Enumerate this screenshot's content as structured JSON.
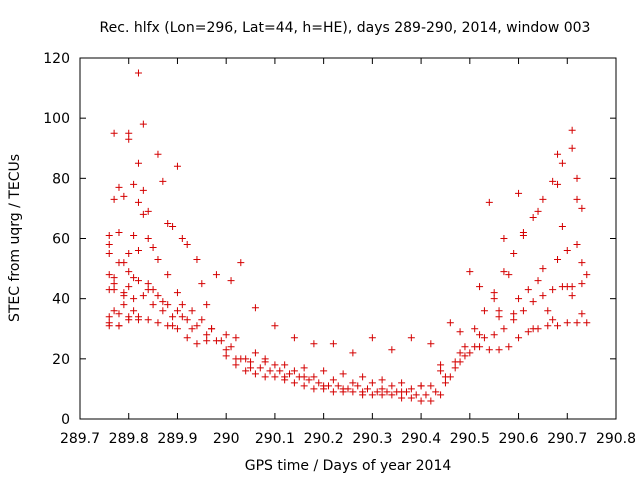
{
  "chart_data": {
    "type": "scatter",
    "title": "Rec. hlfx (Lon=296, Lat=44, h=HE), days 289-290, 2014, window 003",
    "xlabel": "GPS time / Days of year 2014",
    "ylabel": "STEC from uqrg / TECUs",
    "xlim": [
      289.7,
      290.8
    ],
    "ylim": [
      0,
      120
    ],
    "xticks": [
      "289.7",
      "289.8",
      "289.9",
      "290",
      "290.1",
      "290.2",
      "290.3",
      "290.4",
      "290.5",
      "290.6",
      "290.7",
      "290.8"
    ],
    "yticks": [
      "0",
      "20",
      "40",
      "60",
      "80",
      "100",
      "120"
    ],
    "marker": "plus",
    "marker_color": "#d40000",
    "grid": false,
    "legend": "none",
    "series": [
      {
        "x": [
          289.76,
          289.76,
          289.76,
          289.76,
          289.76,
          289.76,
          289.77,
          289.77,
          289.77,
          289.77,
          289.77,
          289.78,
          289.78,
          289.78,
          289.78,
          289.79,
          289.79,
          289.79,
          289.79,
          289.8,
          289.8,
          289.8,
          289.8,
          289.8,
          289.81,
          289.81,
          289.81,
          289.81,
          289.82,
          289.82,
          289.82,
          289.82,
          289.82,
          289.83,
          289.83,
          289.83,
          289.84,
          289.84,
          289.84,
          289.85,
          289.85,
          289.86,
          289.86,
          289.87,
          289.87,
          289.88,
          289.88,
          289.89,
          289.89,
          289.9,
          289.9,
          289.91,
          289.91,
          289.92,
          289.93,
          289.94,
          289.95,
          289.96,
          289.97,
          289.98,
          290.0,
          290.01,
          290.02,
          290.03,
          290.05,
          290.06,
          290.08,
          290.1,
          290.12,
          290.14,
          290.16,
          290.18,
          290.2,
          290.22,
          290.24,
          290.26,
          290.28,
          290.3,
          290.32,
          290.34,
          290.36,
          290.38,
          290.4,
          290.42,
          290.44,
          290.46,
          290.48,
          290.5,
          290.52,
          290.54,
          290.55,
          290.56,
          290.57,
          290.58,
          290.59,
          290.6,
          290.61,
          290.62,
          290.63,
          290.64,
          290.65,
          290.66,
          290.67,
          290.68,
          290.68,
          290.69,
          290.7,
          290.7,
          290.71,
          290.71,
          290.72,
          290.72,
          290.73,
          290.73,
          290.73,
          290.74
        ],
        "y": [
          34,
          58,
          48,
          43,
          61,
          32,
          73,
          95,
          47,
          43,
          36,
          62,
          77,
          35,
          31,
          74,
          52,
          41,
          38,
          95,
          55,
          44,
          34,
          93,
          78,
          61,
          47,
          36,
          115,
          85,
          72,
          56,
          33,
          98,
          76,
          68,
          69,
          60,
          45,
          57,
          43,
          88,
          53,
          79,
          39,
          65,
          48,
          64,
          31,
          84,
          42,
          60,
          34,
          58,
          30,
          53,
          45,
          38,
          30,
          48,
          28,
          46,
          20,
          52,
          19,
          37,
          20,
          31,
          14,
          27,
          14,
          25,
          11,
          25,
          10,
          22,
          9,
          27,
          10,
          23,
          9,
          27,
          11,
          25,
          18,
          32,
          29,
          49,
          44,
          72,
          40,
          36,
          60,
          48,
          35,
          75,
          62,
          43,
          30,
          69,
          50,
          36,
          33,
          88,
          78,
          64,
          56,
          44,
          96,
          41,
          80,
          73,
          35,
          70,
          52,
          48
        ]
      },
      {
        "x": [
          289.76,
          289.78,
          289.8,
          289.82,
          289.84,
          289.86,
          289.88,
          289.9,
          289.92,
          289.94,
          289.96,
          289.98,
          290.0,
          290.02,
          290.04,
          290.06,
          290.08,
          290.1,
          290.12,
          290.14,
          290.16,
          290.18,
          290.2,
          290.22,
          290.24,
          290.26,
          290.28,
          290.3,
          290.32,
          290.34,
          290.36,
          290.38,
          290.4,
          290.42,
          290.44,
          290.46,
          290.48,
          290.5,
          290.52,
          290.54,
          290.56,
          290.58,
          290.6,
          290.62,
          290.64,
          290.66,
          290.68,
          290.7,
          290.72,
          290.74
        ],
        "y": [
          31,
          31,
          33,
          34,
          33,
          32,
          31,
          30,
          27,
          25,
          26,
          26,
          21,
          18,
          16,
          15,
          14,
          14,
          13,
          12,
          11,
          10,
          10,
          9,
          9,
          9,
          8,
          8,
          8,
          8,
          7,
          7,
          6,
          6,
          8,
          14,
          19,
          22,
          24,
          23,
          23,
          24,
          27,
          29,
          30,
          31,
          31,
          32,
          32,
          32
        ]
      },
      {
        "x": [
          289.77,
          289.79,
          289.81,
          289.83,
          289.85,
          289.87,
          289.89,
          289.91,
          289.93,
          289.95,
          289.97,
          289.99,
          290.01,
          290.03,
          290.05,
          290.07,
          290.09,
          290.11,
          290.13,
          290.15,
          290.17,
          290.19,
          290.21,
          290.23,
          290.25,
          290.27,
          290.29,
          290.31,
          290.33,
          290.35,
          290.37,
          290.39,
          290.41,
          290.43,
          290.45,
          290.47,
          290.49,
          290.51,
          290.53,
          290.55,
          290.57,
          290.59,
          290.61,
          290.63,
          290.65,
          290.67,
          290.69,
          290.71,
          290.73
        ],
        "y": [
          45,
          42,
          40,
          41,
          38,
          36,
          34,
          38,
          36,
          33,
          30,
          26,
          24,
          20,
          17,
          17,
          16,
          16,
          15,
          14,
          13,
          12,
          11,
          11,
          10,
          11,
          10,
          9,
          9,
          9,
          9,
          8,
          8,
          9,
          12,
          17,
          21,
          24,
          27,
          28,
          30,
          33,
          36,
          39,
          41,
          43,
          44,
          44,
          45
        ]
      },
      {
        "x": [
          289.76,
          289.78,
          289.8,
          289.82,
          289.84,
          289.86,
          289.88,
          289.9,
          289.92,
          289.94,
          289.96,
          290.0,
          290.04,
          290.08,
          290.12,
          290.16,
          290.2,
          290.24,
          290.28,
          290.32,
          290.36,
          290.4,
          290.44,
          290.48,
          290.52,
          290.56,
          290.6,
          290.64,
          290.68,
          290.72
        ],
        "y": [
          55,
          52,
          49,
          46,
          43,
          41,
          38,
          36,
          33,
          31,
          28,
          23,
          20,
          19,
          18,
          17,
          16,
          15,
          14,
          13,
          12,
          11,
          16,
          22,
          28,
          34,
          40,
          46,
          53,
          58
        ]
      },
      {
        "x": [
          290.02,
          290.06,
          290.1,
          290.14,
          290.18,
          290.22,
          290.26,
          290.3,
          290.34,
          290.38,
          290.42,
          290.45,
          290.47,
          290.49,
          290.51,
          290.53,
          290.55,
          290.57,
          290.59,
          290.61,
          290.63,
          290.65,
          290.67,
          290.69,
          290.71
        ],
        "y": [
          27,
          22,
          18,
          16,
          14,
          13,
          12,
          12,
          11,
          10,
          11,
          14,
          19,
          24,
          30,
          36,
          42,
          49,
          55,
          61,
          67,
          73,
          79,
          85,
          90
        ]
      }
    ]
  }
}
